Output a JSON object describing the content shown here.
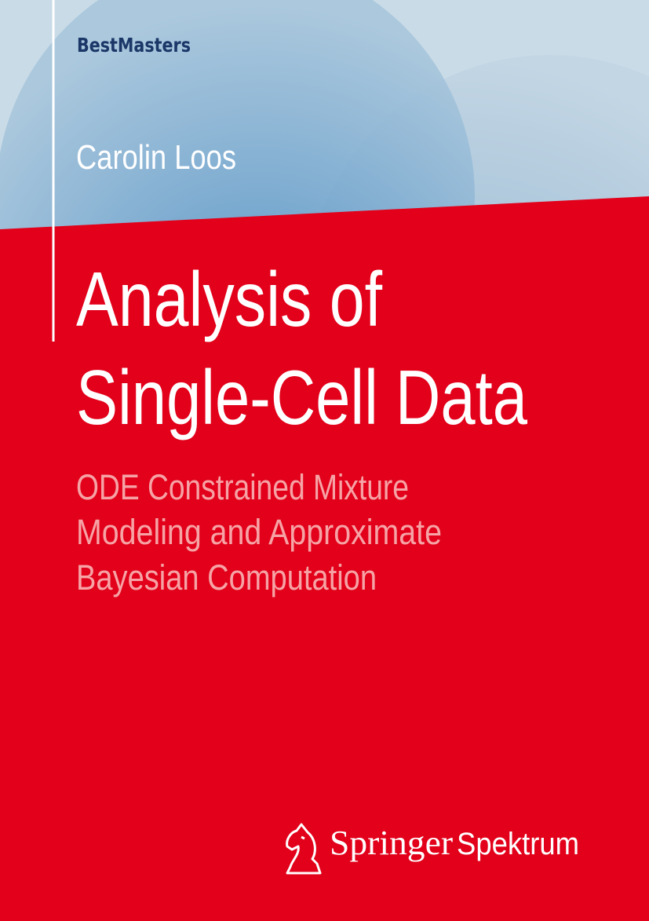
{
  "series": "BestMasters",
  "author": "Carolin Loos",
  "title": [
    "Analysis of",
    "Single-Cell Data"
  ],
  "subtitle": [
    "ODE Constrained Mixture",
    "Modeling and Approximate",
    "Bayesian Computation"
  ],
  "publisher": {
    "name": "Springer",
    "imprint": "Spektrum"
  }
}
